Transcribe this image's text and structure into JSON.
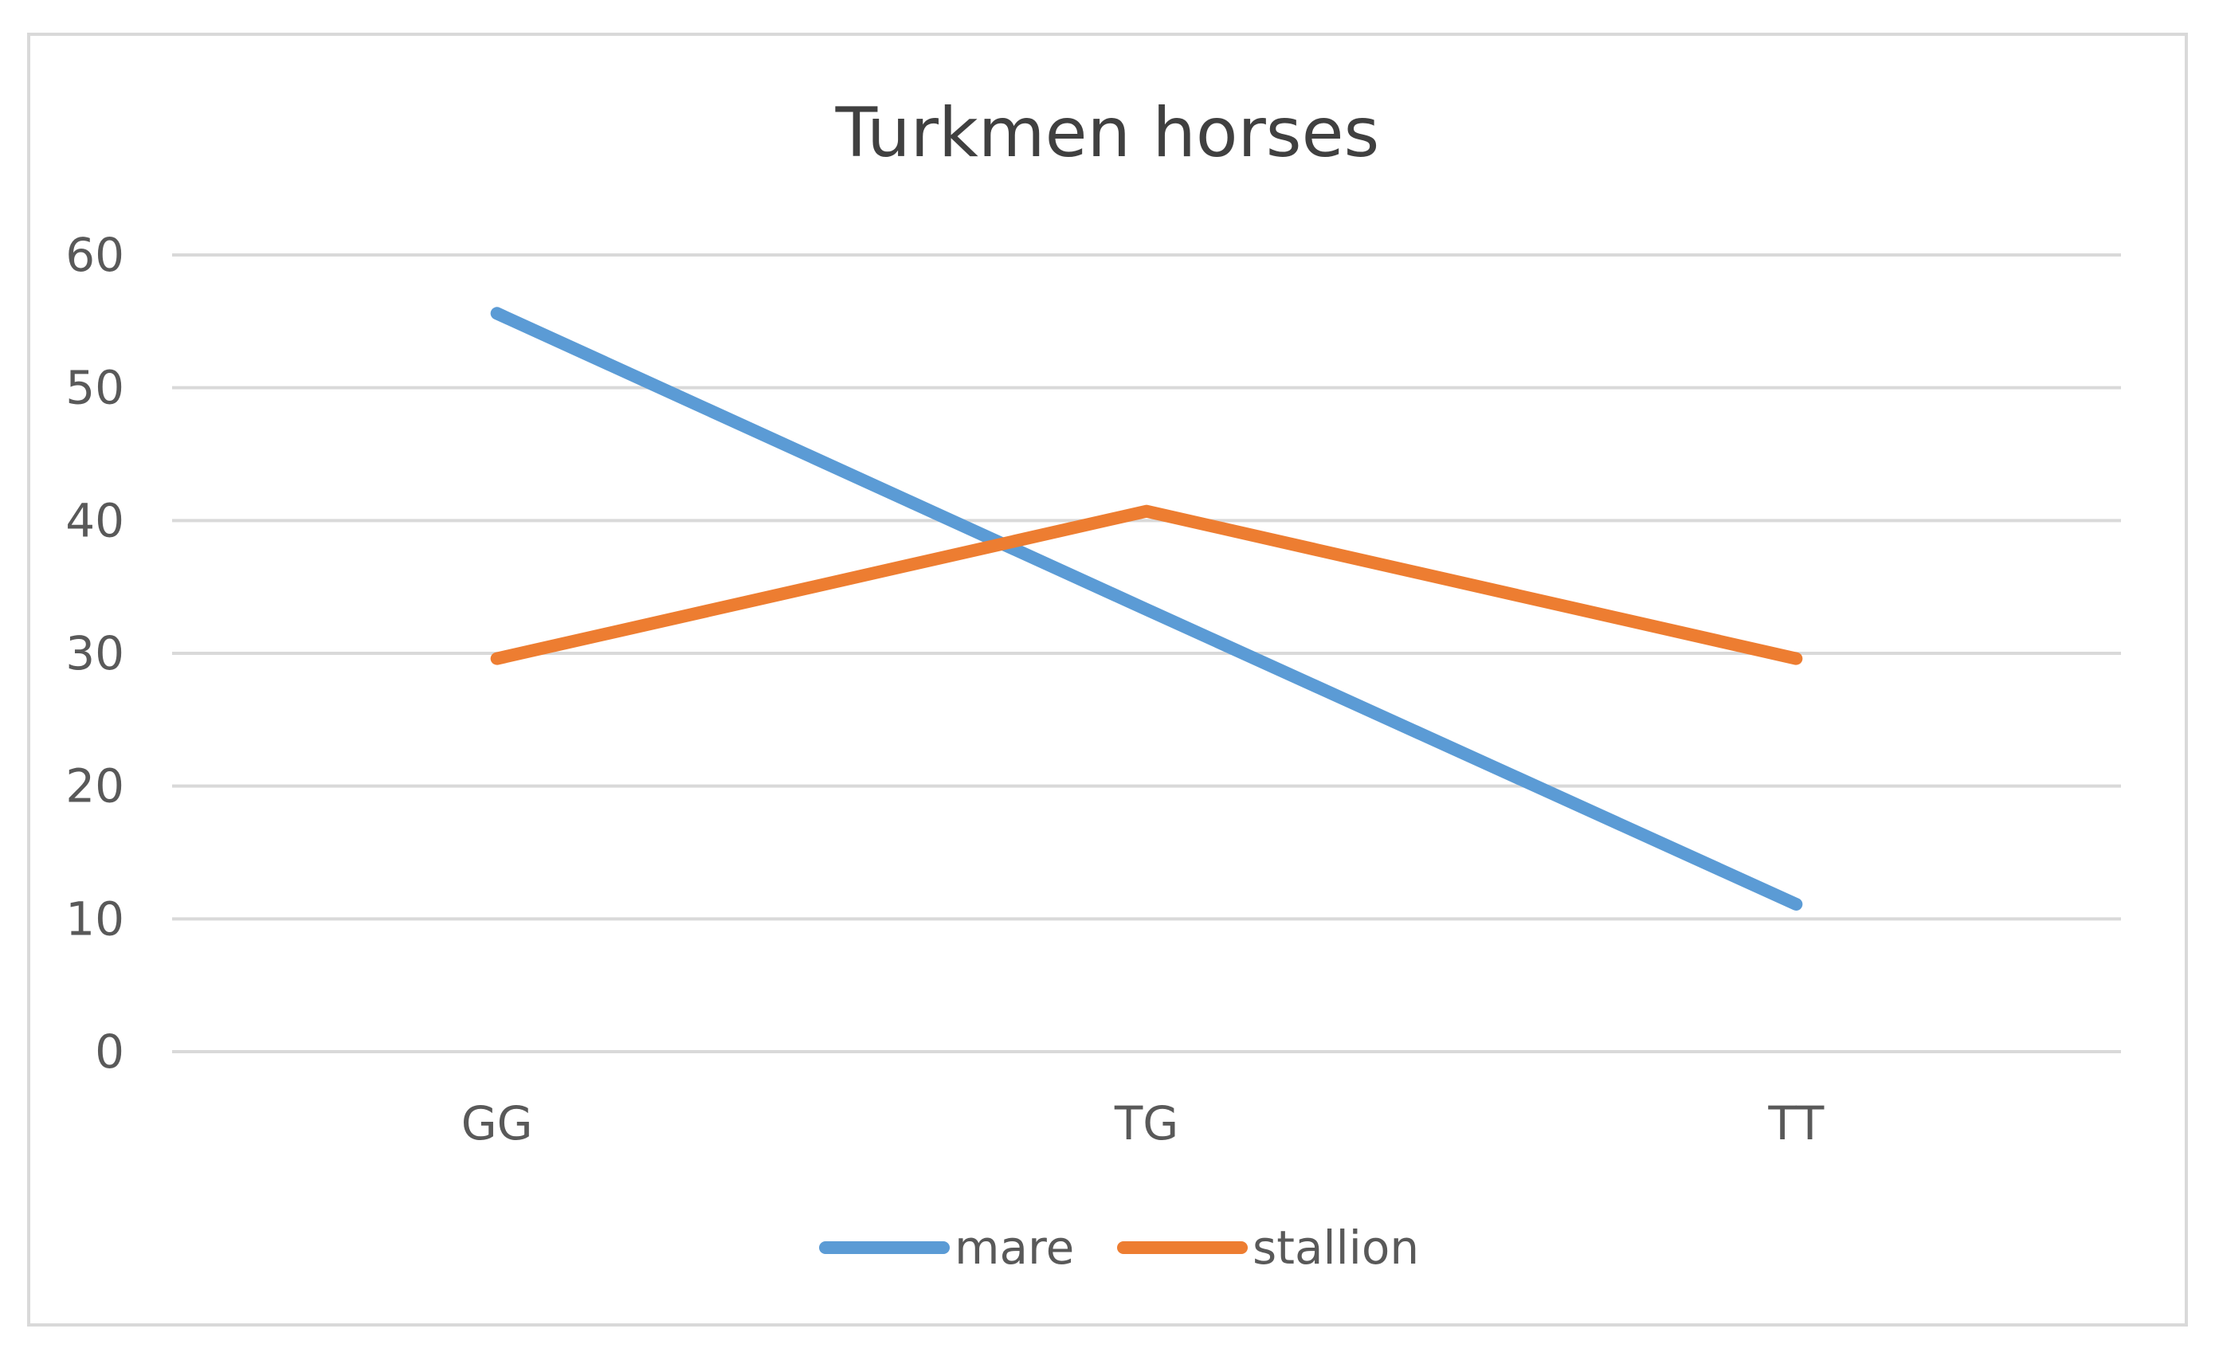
{
  "chart_data": {
    "type": "line",
    "title": "Turkmen horses",
    "categories": [
      "GG",
      "TG",
      "TT"
    ],
    "series": [
      {
        "name": "mare",
        "values": [
          55.6,
          33.3,
          11.1
        ],
        "color": "#5B9BD5"
      },
      {
        "name": "stallion",
        "values": [
          29.6,
          40.7,
          29.6
        ],
        "color": "#ED7D31"
      }
    ],
    "yticks": [
      0,
      10,
      20,
      30,
      40,
      50,
      60
    ],
    "ylim": [
      0,
      60
    ],
    "grid": true,
    "legend_position": "bottom",
    "axis_text_color": "#595959",
    "title_color": "#404040",
    "gridline_color": "#D9D9D9",
    "border_color": "#D9D9D9"
  }
}
